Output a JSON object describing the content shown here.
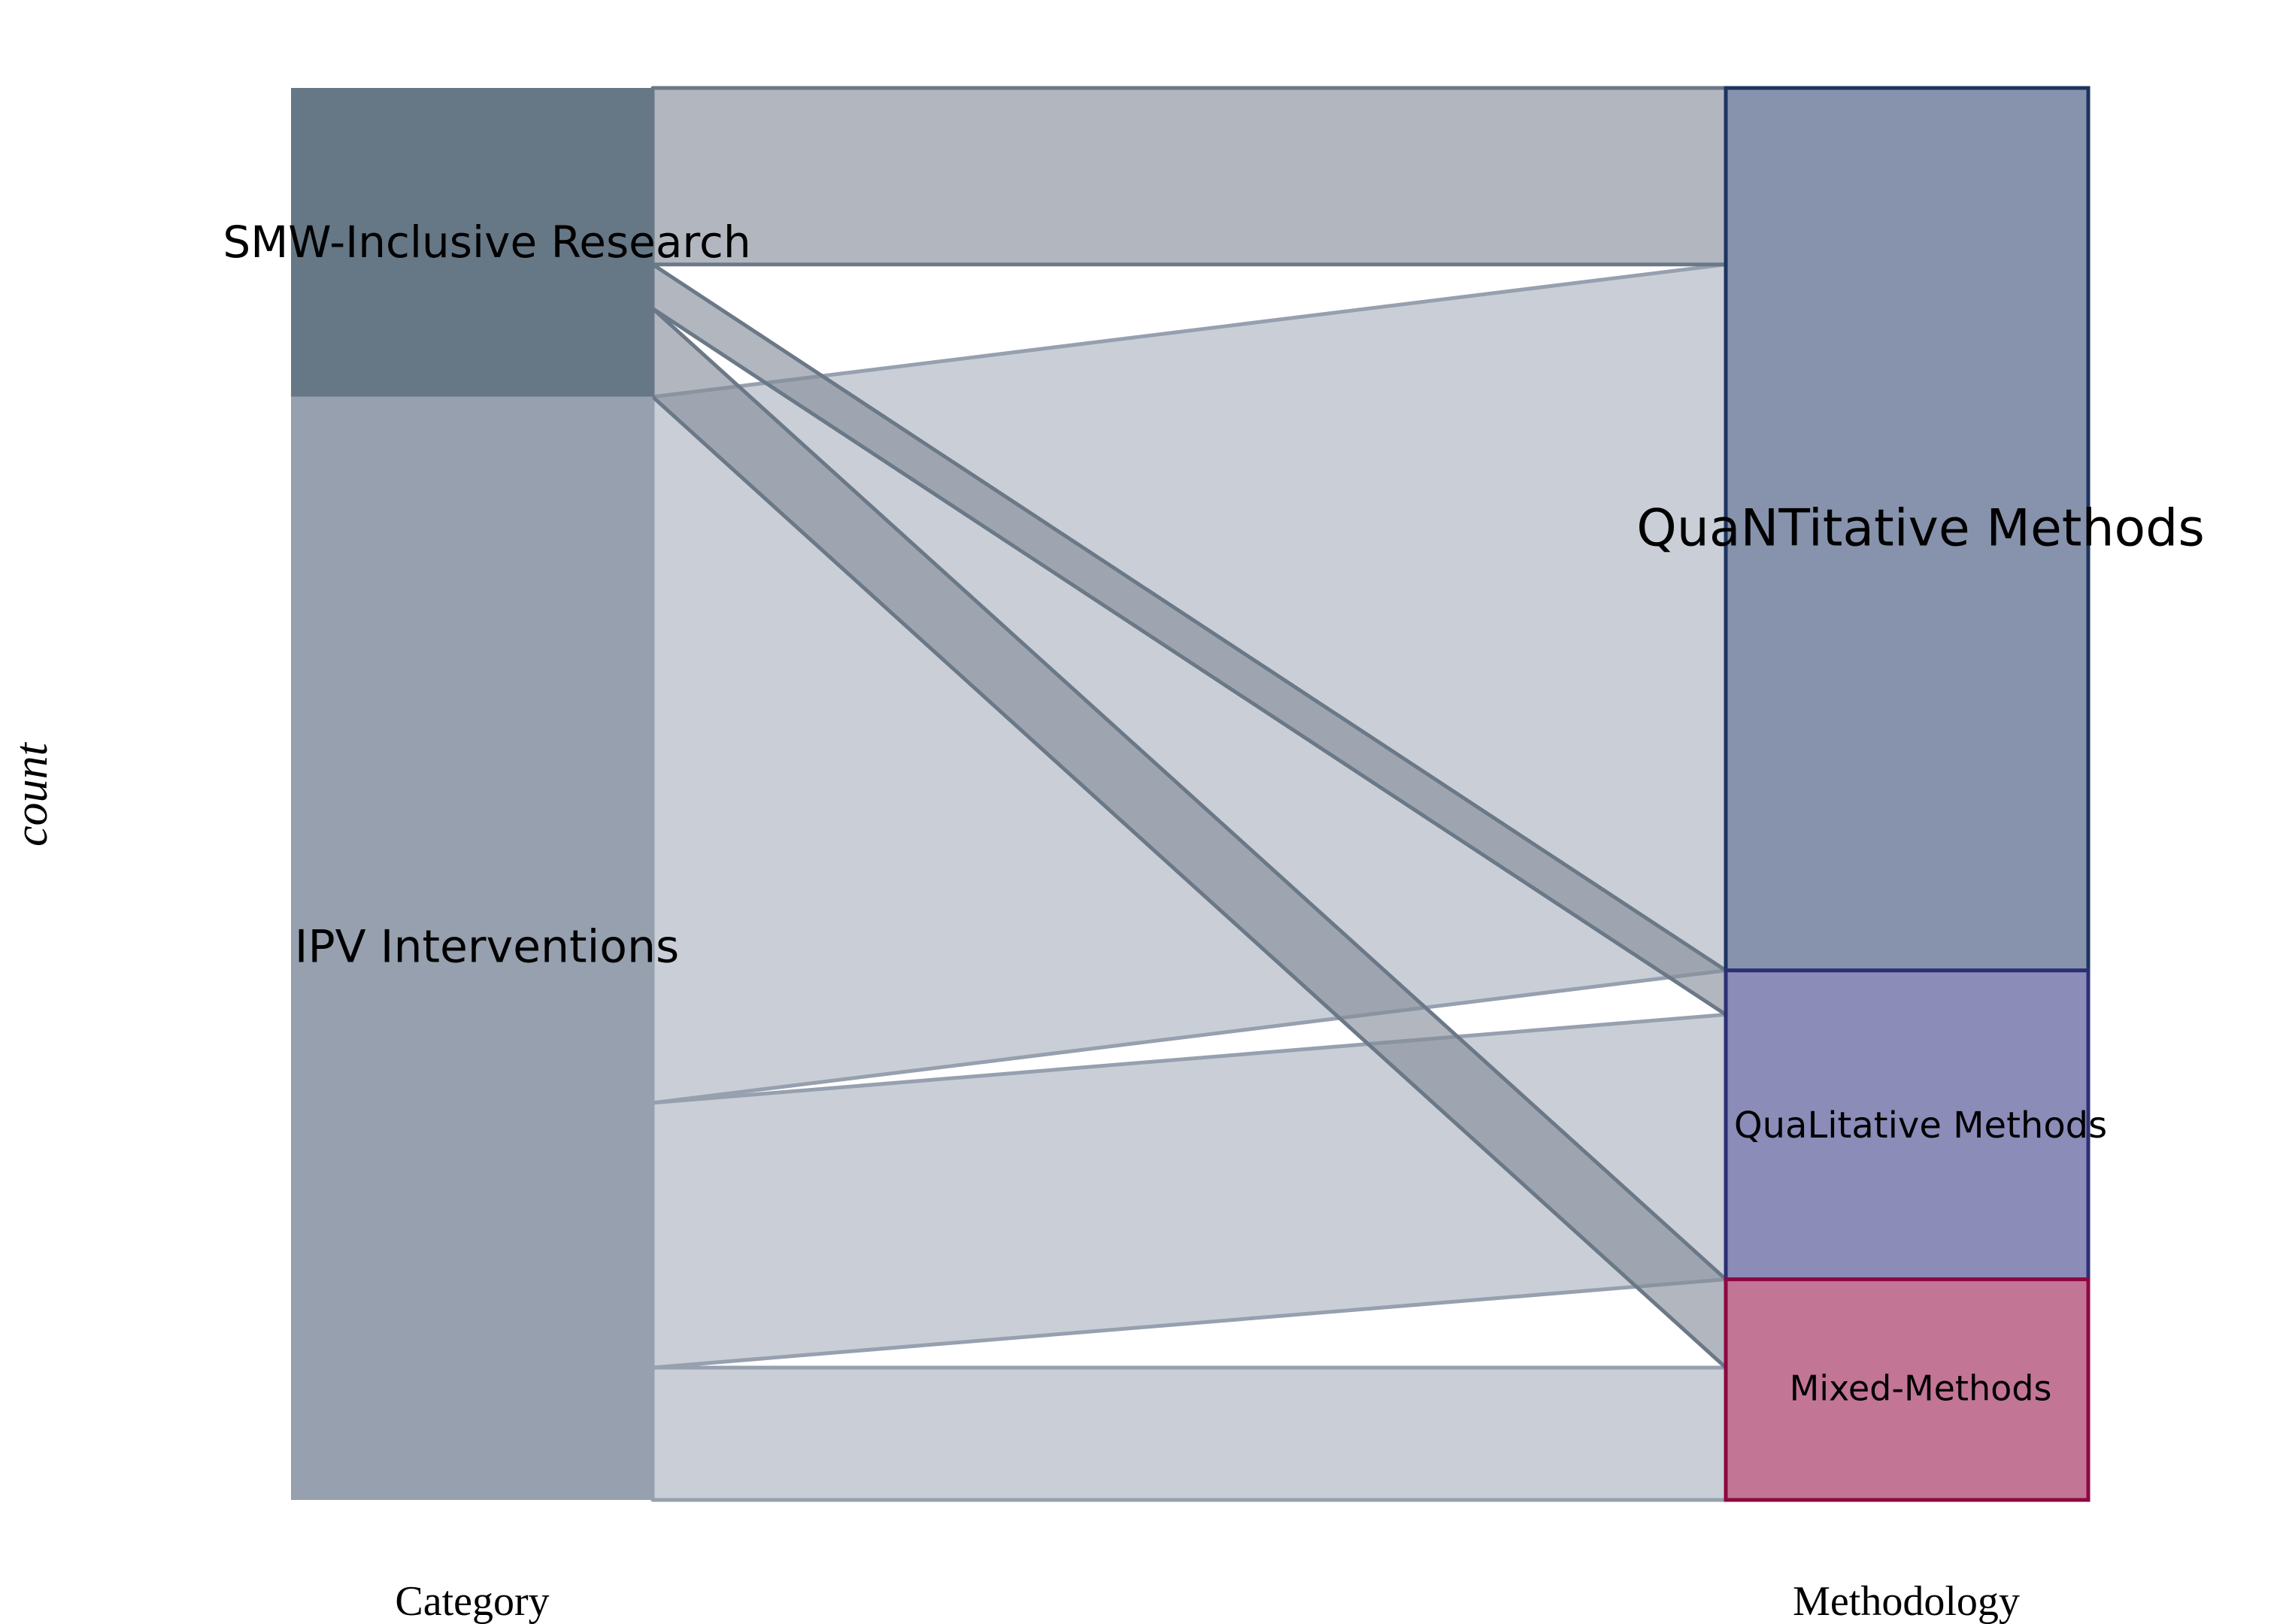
{
  "chart_data": {
    "type": "alluvial",
    "ylabel": "count",
    "axes": [
      {
        "key": "category",
        "label": "Category"
      },
      {
        "key": "methodology",
        "label": "Methodology"
      }
    ],
    "strata": {
      "category": [
        {
          "name": "SMW-Inclusive Research",
          "value": 7,
          "fill": "#667786"
        },
        {
          "name": "IPV Interventions",
          "value": 25,
          "fill": "#96a0ae"
        }
      ],
      "methodology": [
        {
          "name": "QuaNTitative Methods",
          "value": 20,
          "fill": "#8793ac",
          "stroke": "#1d3460"
        },
        {
          "name": "QuaLitative Methods",
          "value": 7,
          "fill": "#8b8cb8",
          "stroke": "#2c2f75"
        },
        {
          "name": "Mixed-Methods",
          "value": 5,
          "fill": "#c37596",
          "stroke": "#8c0840"
        }
      ]
    },
    "flows": [
      {
        "from": "SMW-Inclusive Research",
        "to": "QuaNTitative Methods",
        "value": 4
      },
      {
        "from": "SMW-Inclusive Research",
        "to": "QuaLitative Methods",
        "value": 1
      },
      {
        "from": "SMW-Inclusive Research",
        "to": "Mixed-Methods",
        "value": 2
      },
      {
        "from": "IPV Interventions",
        "to": "QuaNTitative Methods",
        "value": 16
      },
      {
        "from": "IPV Interventions",
        "to": "QuaLitative Methods",
        "value": 6
      },
      {
        "from": "IPV Interventions",
        "to": "Mixed-Methods",
        "value": 3
      }
    ],
    "ylim": [
      0,
      32
    ],
    "grid": false,
    "legend": "none"
  }
}
